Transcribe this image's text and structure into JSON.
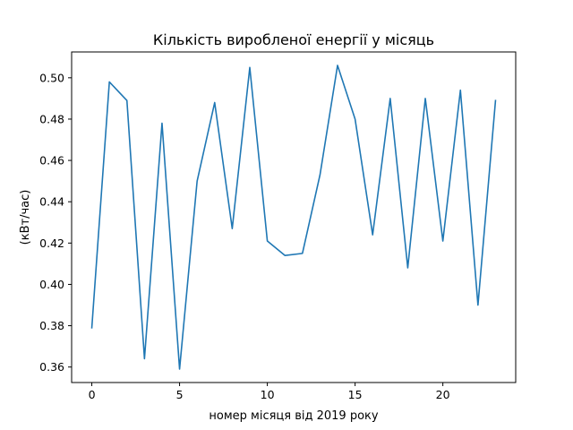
{
  "chart_data": {
    "type": "line",
    "title": "Кількість виробленої енергії у місяць",
    "xlabel": "номер місяця від 2019 року",
    "ylabel": "(кВт/час)",
    "xlim": [
      -1.15,
      24.15
    ],
    "ylim": [
      0.3525,
      0.5125
    ],
    "xticks": [
      0,
      5,
      10,
      15,
      20
    ],
    "xtick_labels": [
      "0",
      "5",
      "10",
      "15",
      "20"
    ],
    "yticks": [
      0.36,
      0.38,
      0.4,
      0.42,
      0.44,
      0.46,
      0.48,
      0.5
    ],
    "ytick_labels": [
      "0.36",
      "0.38",
      "0.40",
      "0.42",
      "0.44",
      "0.46",
      "0.48",
      "0.50"
    ],
    "grid": false,
    "series": [
      {
        "color": "#1f77b4",
        "x": [
          0,
          1,
          2,
          3,
          4,
          5,
          6,
          7,
          8,
          9,
          10,
          11,
          12,
          13,
          14,
          15,
          16,
          17,
          18,
          19,
          20,
          21,
          22,
          23
        ],
        "y": [
          0.379,
          0.498,
          0.489,
          0.364,
          0.478,
          0.359,
          0.45,
          0.488,
          0.427,
          0.505,
          0.421,
          0.414,
          0.415,
          0.453,
          0.506,
          0.48,
          0.424,
          0.49,
          0.408,
          0.49,
          0.421,
          0.494,
          0.39,
          0.489
        ]
      }
    ]
  }
}
